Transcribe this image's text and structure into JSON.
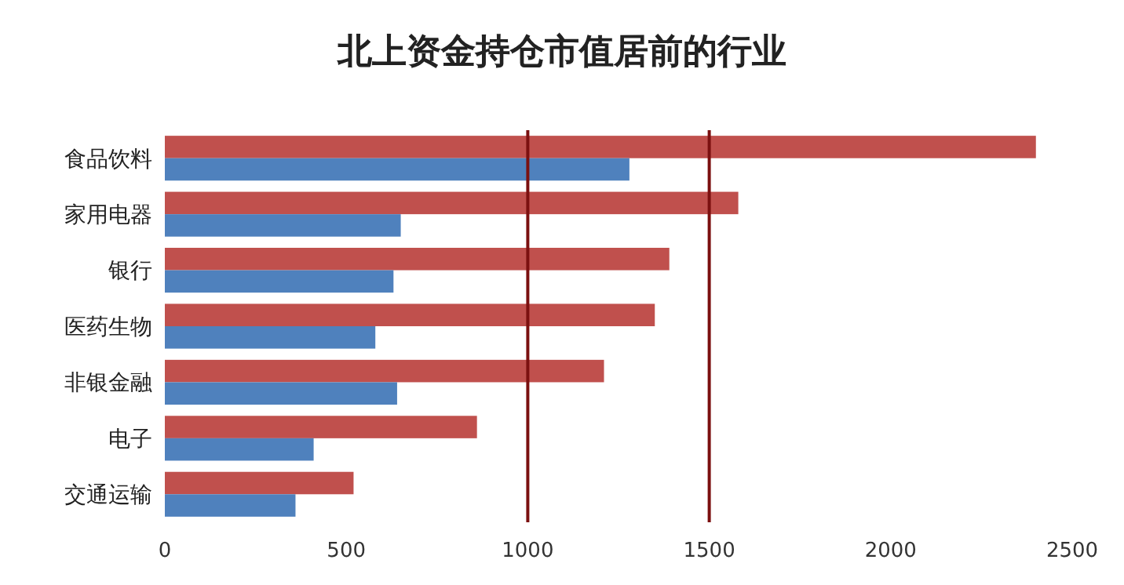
{
  "chart_data": {
    "type": "bar",
    "orientation": "horizontal",
    "title": "北上资金持仓市值居前的行业",
    "categories": [
      "食品饮料",
      "家用电器",
      "银行",
      "医药生物",
      "非银金融",
      "电子",
      "交通运输"
    ],
    "series": [
      {
        "color": "#c0504d",
        "values": [
          2400,
          1580,
          1390,
          1350,
          1210,
          860,
          520
        ]
      },
      {
        "color": "#4f81bd",
        "values": [
          1280,
          650,
          630,
          580,
          640,
          410,
          360
        ]
      }
    ],
    "xlim": [
      0,
      2500
    ],
    "xticks": [
      0,
      500,
      1000,
      1500,
      2000,
      2500
    ],
    "ref_lines": [
      {
        "axis": "x",
        "value": 1000,
        "color": "#7b1010"
      },
      {
        "axis": "x",
        "value": 1500,
        "color": "#7b1010"
      }
    ]
  }
}
